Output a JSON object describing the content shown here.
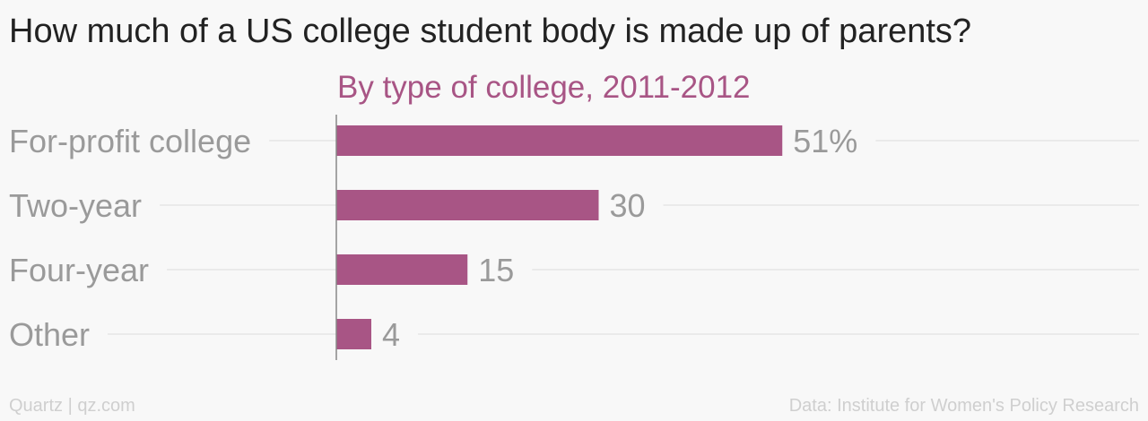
{
  "chart_data": {
    "type": "bar",
    "orientation": "horizontal",
    "title": "How much of a US college student body is made up of parents?",
    "subtitle": "By type of college, 2011-2012",
    "categories": [
      "For-profit college",
      "Two-year",
      "Four-year",
      "Other"
    ],
    "values": [
      51,
      30,
      15,
      4
    ],
    "value_labels": [
      "51%",
      "30",
      "15",
      "4"
    ],
    "unit": "%",
    "xlim": [
      0,
      100
    ],
    "grid": true,
    "legend": "none"
  },
  "colors": {
    "bar": "#a85585",
    "subtitle": "#a85585",
    "category_label": "#9a9a9a",
    "value_label": "#9a9a9a",
    "gridline": "#e6e6e6",
    "axis": "#888888"
  },
  "footer": {
    "left": "Quartz | qz.com",
    "right": "Data: Institute for Women's Policy Research"
  }
}
